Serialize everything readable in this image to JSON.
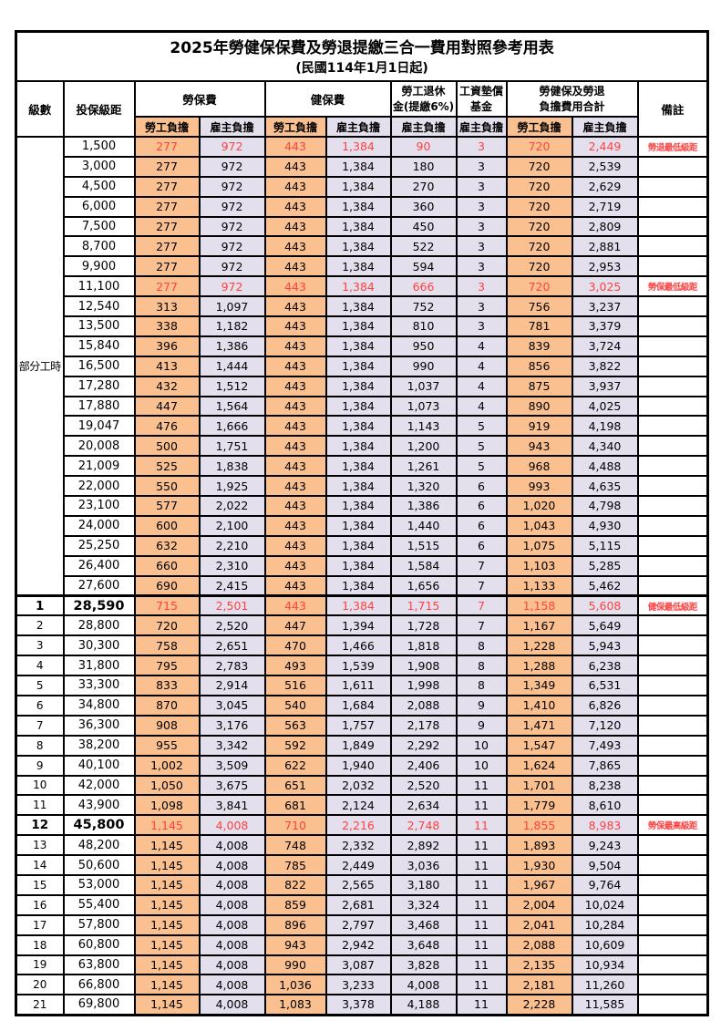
{
  "title": "2025年勞健保保費及勞退提繳三合一費用對照參考用表",
  "subtitle": "(民國114年1月1日起)",
  "header": {
    "level": "級數",
    "bracket": "投保級距",
    "labor_insurance": "勞保費",
    "health_insurance": "健保費",
    "pension_line1": "勞工退休",
    "pension_line2": "金(提繳6%)",
    "wage_fund_line1": "工資墊償",
    "wage_fund_line2": "基金",
    "total_line1": "勞健保及勞退",
    "total_line2": "負擔費用合計",
    "remark": "備註",
    "employee_label": "勞工負擔",
    "employer_label": "雇主負擔"
  },
  "part_time_label": "部分工時",
  "part_time_rowspan": 23,
  "colors": {
    "employee_bg": "#FAC090",
    "employer_bg": "#E4DFEC",
    "highlight_red": "#FF4141",
    "border": "#000000"
  },
  "rows": [
    {
      "level": "",
      "bracket": "1,500",
      "values": [
        "277",
        "972",
        "443",
        "1,384",
        "90",
        "3",
        "720",
        "2,449"
      ],
      "remark": "勞退最低級距",
      "red": true,
      "key": false,
      "sep": false
    },
    {
      "level": "",
      "bracket": "3,000",
      "values": [
        "277",
        "972",
        "443",
        "1,384",
        "180",
        "3",
        "720",
        "2,539"
      ],
      "remark": "",
      "red": false,
      "key": false,
      "sep": false
    },
    {
      "level": "",
      "bracket": "4,500",
      "values": [
        "277",
        "972",
        "443",
        "1,384",
        "270",
        "3",
        "720",
        "2,629"
      ],
      "remark": "",
      "red": false,
      "key": false,
      "sep": false
    },
    {
      "level": "",
      "bracket": "6,000",
      "values": [
        "277",
        "972",
        "443",
        "1,384",
        "360",
        "3",
        "720",
        "2,719"
      ],
      "remark": "",
      "red": false,
      "key": false,
      "sep": false
    },
    {
      "level": "",
      "bracket": "7,500",
      "values": [
        "277",
        "972",
        "443",
        "1,384",
        "450",
        "3",
        "720",
        "2,809"
      ],
      "remark": "",
      "red": false,
      "key": false,
      "sep": false
    },
    {
      "level": "",
      "bracket": "8,700",
      "values": [
        "277",
        "972",
        "443",
        "1,384",
        "522",
        "3",
        "720",
        "2,881"
      ],
      "remark": "",
      "red": false,
      "key": false,
      "sep": false
    },
    {
      "level": "",
      "bracket": "9,900",
      "values": [
        "277",
        "972",
        "443",
        "1,384",
        "594",
        "3",
        "720",
        "2,953"
      ],
      "remark": "",
      "red": false,
      "key": false,
      "sep": false
    },
    {
      "level": "",
      "bracket": "11,100",
      "values": [
        "277",
        "972",
        "443",
        "1,384",
        "666",
        "3",
        "720",
        "3,025"
      ],
      "remark": "勞保最低級距",
      "red": true,
      "key": false,
      "sep": false
    },
    {
      "level": "",
      "bracket": "12,540",
      "values": [
        "313",
        "1,097",
        "443",
        "1,384",
        "752",
        "3",
        "756",
        "3,237"
      ],
      "remark": "",
      "red": false,
      "key": false,
      "sep": false
    },
    {
      "level": "",
      "bracket": "13,500",
      "values": [
        "338",
        "1,182",
        "443",
        "1,384",
        "810",
        "3",
        "781",
        "3,379"
      ],
      "remark": "",
      "red": false,
      "key": false,
      "sep": false
    },
    {
      "level": "",
      "bracket": "15,840",
      "values": [
        "396",
        "1,386",
        "443",
        "1,384",
        "950",
        "4",
        "839",
        "3,724"
      ],
      "remark": "",
      "red": false,
      "key": false,
      "sep": false
    },
    {
      "level": "",
      "bracket": "16,500",
      "values": [
        "413",
        "1,444",
        "443",
        "1,384",
        "990",
        "4",
        "856",
        "3,822"
      ],
      "remark": "",
      "red": false,
      "key": false,
      "sep": false
    },
    {
      "level": "",
      "bracket": "17,280",
      "values": [
        "432",
        "1,512",
        "443",
        "1,384",
        "1,037",
        "4",
        "875",
        "3,937"
      ],
      "remark": "",
      "red": false,
      "key": false,
      "sep": false
    },
    {
      "level": "",
      "bracket": "17,880",
      "values": [
        "447",
        "1,564",
        "443",
        "1,384",
        "1,073",
        "4",
        "890",
        "4,025"
      ],
      "remark": "",
      "red": false,
      "key": false,
      "sep": false
    },
    {
      "level": "",
      "bracket": "19,047",
      "values": [
        "476",
        "1,666",
        "443",
        "1,384",
        "1,143",
        "5",
        "919",
        "4,198"
      ],
      "remark": "",
      "red": false,
      "key": false,
      "sep": false
    },
    {
      "level": "",
      "bracket": "20,008",
      "values": [
        "500",
        "1,751",
        "443",
        "1,384",
        "1,200",
        "5",
        "943",
        "4,340"
      ],
      "remark": "",
      "red": false,
      "key": false,
      "sep": false
    },
    {
      "level": "",
      "bracket": "21,009",
      "values": [
        "525",
        "1,838",
        "443",
        "1,384",
        "1,261",
        "5",
        "968",
        "4,488"
      ],
      "remark": "",
      "red": false,
      "key": false,
      "sep": false
    },
    {
      "level": "",
      "bracket": "22,000",
      "values": [
        "550",
        "1,925",
        "443",
        "1,384",
        "1,320",
        "6",
        "993",
        "4,635"
      ],
      "remark": "",
      "red": false,
      "key": false,
      "sep": false
    },
    {
      "level": "",
      "bracket": "23,100",
      "values": [
        "577",
        "2,022",
        "443",
        "1,384",
        "1,386",
        "6",
        "1,020",
        "4,798"
      ],
      "remark": "",
      "red": false,
      "key": false,
      "sep": false
    },
    {
      "level": "",
      "bracket": "24,000",
      "values": [
        "600",
        "2,100",
        "443",
        "1,384",
        "1,440",
        "6",
        "1,043",
        "4,930"
      ],
      "remark": "",
      "red": false,
      "key": false,
      "sep": false
    },
    {
      "level": "",
      "bracket": "25,250",
      "values": [
        "632",
        "2,210",
        "443",
        "1,384",
        "1,515",
        "6",
        "1,075",
        "5,115"
      ],
      "remark": "",
      "red": false,
      "key": false,
      "sep": false
    },
    {
      "level": "",
      "bracket": "26,400",
      "values": [
        "660",
        "2,310",
        "443",
        "1,384",
        "1,584",
        "7",
        "1,103",
        "5,285"
      ],
      "remark": "",
      "red": false,
      "key": false,
      "sep": false
    },
    {
      "level": "",
      "bracket": "27,600",
      "values": [
        "690",
        "2,415",
        "443",
        "1,384",
        "1,656",
        "7",
        "1,133",
        "5,462"
      ],
      "remark": "",
      "red": false,
      "key": false,
      "sep": false
    },
    {
      "level": "1",
      "bracket": "28,590",
      "values": [
        "715",
        "2,501",
        "443",
        "1,384",
        "1,715",
        "7",
        "1,158",
        "5,608"
      ],
      "remark": "健保最低級距",
      "red": true,
      "key": true,
      "sep": true
    },
    {
      "level": "2",
      "bracket": "28,800",
      "values": [
        "720",
        "2,520",
        "447",
        "1,394",
        "1,728",
        "7",
        "1,167",
        "5,649"
      ],
      "remark": "",
      "red": false,
      "key": false,
      "sep": false
    },
    {
      "level": "3",
      "bracket": "30,300",
      "values": [
        "758",
        "2,651",
        "470",
        "1,466",
        "1,818",
        "8",
        "1,228",
        "5,943"
      ],
      "remark": "",
      "red": false,
      "key": false,
      "sep": false
    },
    {
      "level": "4",
      "bracket": "31,800",
      "values": [
        "795",
        "2,783",
        "493",
        "1,539",
        "1,908",
        "8",
        "1,288",
        "6,238"
      ],
      "remark": "",
      "red": false,
      "key": false,
      "sep": false
    },
    {
      "level": "5",
      "bracket": "33,300",
      "values": [
        "833",
        "2,914",
        "516",
        "1,611",
        "1,998",
        "8",
        "1,349",
        "6,531"
      ],
      "remark": "",
      "red": false,
      "key": false,
      "sep": false
    },
    {
      "level": "6",
      "bracket": "34,800",
      "values": [
        "870",
        "3,045",
        "540",
        "1,684",
        "2,088",
        "9",
        "1,410",
        "6,826"
      ],
      "remark": "",
      "red": false,
      "key": false,
      "sep": false
    },
    {
      "level": "7",
      "bracket": "36,300",
      "values": [
        "908",
        "3,176",
        "563",
        "1,757",
        "2,178",
        "9",
        "1,471",
        "7,120"
      ],
      "remark": "",
      "red": false,
      "key": false,
      "sep": false
    },
    {
      "level": "8",
      "bracket": "38,200",
      "values": [
        "955",
        "3,342",
        "592",
        "1,849",
        "2,292",
        "10",
        "1,547",
        "7,493"
      ],
      "remark": "",
      "red": false,
      "key": false,
      "sep": false
    },
    {
      "level": "9",
      "bracket": "40,100",
      "values": [
        "1,002",
        "3,509",
        "622",
        "1,940",
        "2,406",
        "10",
        "1,624",
        "7,865"
      ],
      "remark": "",
      "red": false,
      "key": false,
      "sep": false
    },
    {
      "level": "10",
      "bracket": "42,000",
      "values": [
        "1,050",
        "3,675",
        "651",
        "2,032",
        "2,520",
        "11",
        "1,701",
        "8,238"
      ],
      "remark": "",
      "red": false,
      "key": false,
      "sep": false
    },
    {
      "level": "11",
      "bracket": "43,900",
      "values": [
        "1,098",
        "3,841",
        "681",
        "2,124",
        "2,634",
        "11",
        "1,779",
        "8,610"
      ],
      "remark": "",
      "red": false,
      "key": false,
      "sep": false
    },
    {
      "level": "12",
      "bracket": "45,800",
      "values": [
        "1,145",
        "4,008",
        "710",
        "2,216",
        "2,748",
        "11",
        "1,855",
        "8,983"
      ],
      "remark": "勞保最高級距",
      "red": true,
      "key": true,
      "sep": false
    },
    {
      "level": "13",
      "bracket": "48,200",
      "values": [
        "1,145",
        "4,008",
        "748",
        "2,332",
        "2,892",
        "11",
        "1,893",
        "9,243"
      ],
      "remark": "",
      "red": false,
      "key": false,
      "sep": false
    },
    {
      "level": "14",
      "bracket": "50,600",
      "values": [
        "1,145",
        "4,008",
        "785",
        "2,449",
        "3,036",
        "11",
        "1,930",
        "9,504"
      ],
      "remark": "",
      "red": false,
      "key": false,
      "sep": false
    },
    {
      "level": "15",
      "bracket": "53,000",
      "values": [
        "1,145",
        "4,008",
        "822",
        "2,565",
        "3,180",
        "11",
        "1,967",
        "9,764"
      ],
      "remark": "",
      "red": false,
      "key": false,
      "sep": false
    },
    {
      "level": "16",
      "bracket": "55,400",
      "values": [
        "1,145",
        "4,008",
        "859",
        "2,681",
        "3,324",
        "11",
        "2,004",
        "10,024"
      ],
      "remark": "",
      "red": false,
      "key": false,
      "sep": false
    },
    {
      "level": "17",
      "bracket": "57,800",
      "values": [
        "1,145",
        "4,008",
        "896",
        "2,797",
        "3,468",
        "11",
        "2,041",
        "10,284"
      ],
      "remark": "",
      "red": false,
      "key": false,
      "sep": false
    },
    {
      "level": "18",
      "bracket": "60,800",
      "values": [
        "1,145",
        "4,008",
        "943",
        "2,942",
        "3,648",
        "11",
        "2,088",
        "10,609"
      ],
      "remark": "",
      "red": false,
      "key": false,
      "sep": false
    },
    {
      "level": "19",
      "bracket": "63,800",
      "values": [
        "1,145",
        "4,008",
        "990",
        "3,087",
        "3,828",
        "11",
        "2,135",
        "10,934"
      ],
      "remark": "",
      "red": false,
      "key": false,
      "sep": false
    },
    {
      "level": "20",
      "bracket": "66,800",
      "values": [
        "1,145",
        "4,008",
        "1,036",
        "3,233",
        "4,008",
        "11",
        "2,181",
        "11,260"
      ],
      "remark": "",
      "red": false,
      "key": false,
      "sep": false
    },
    {
      "level": "21",
      "bracket": "69,800",
      "values": [
        "1,145",
        "4,008",
        "1,083",
        "3,378",
        "4,188",
        "11",
        "2,228",
        "11,585"
      ],
      "remark": "",
      "red": false,
      "key": false,
      "sep": false
    }
  ]
}
